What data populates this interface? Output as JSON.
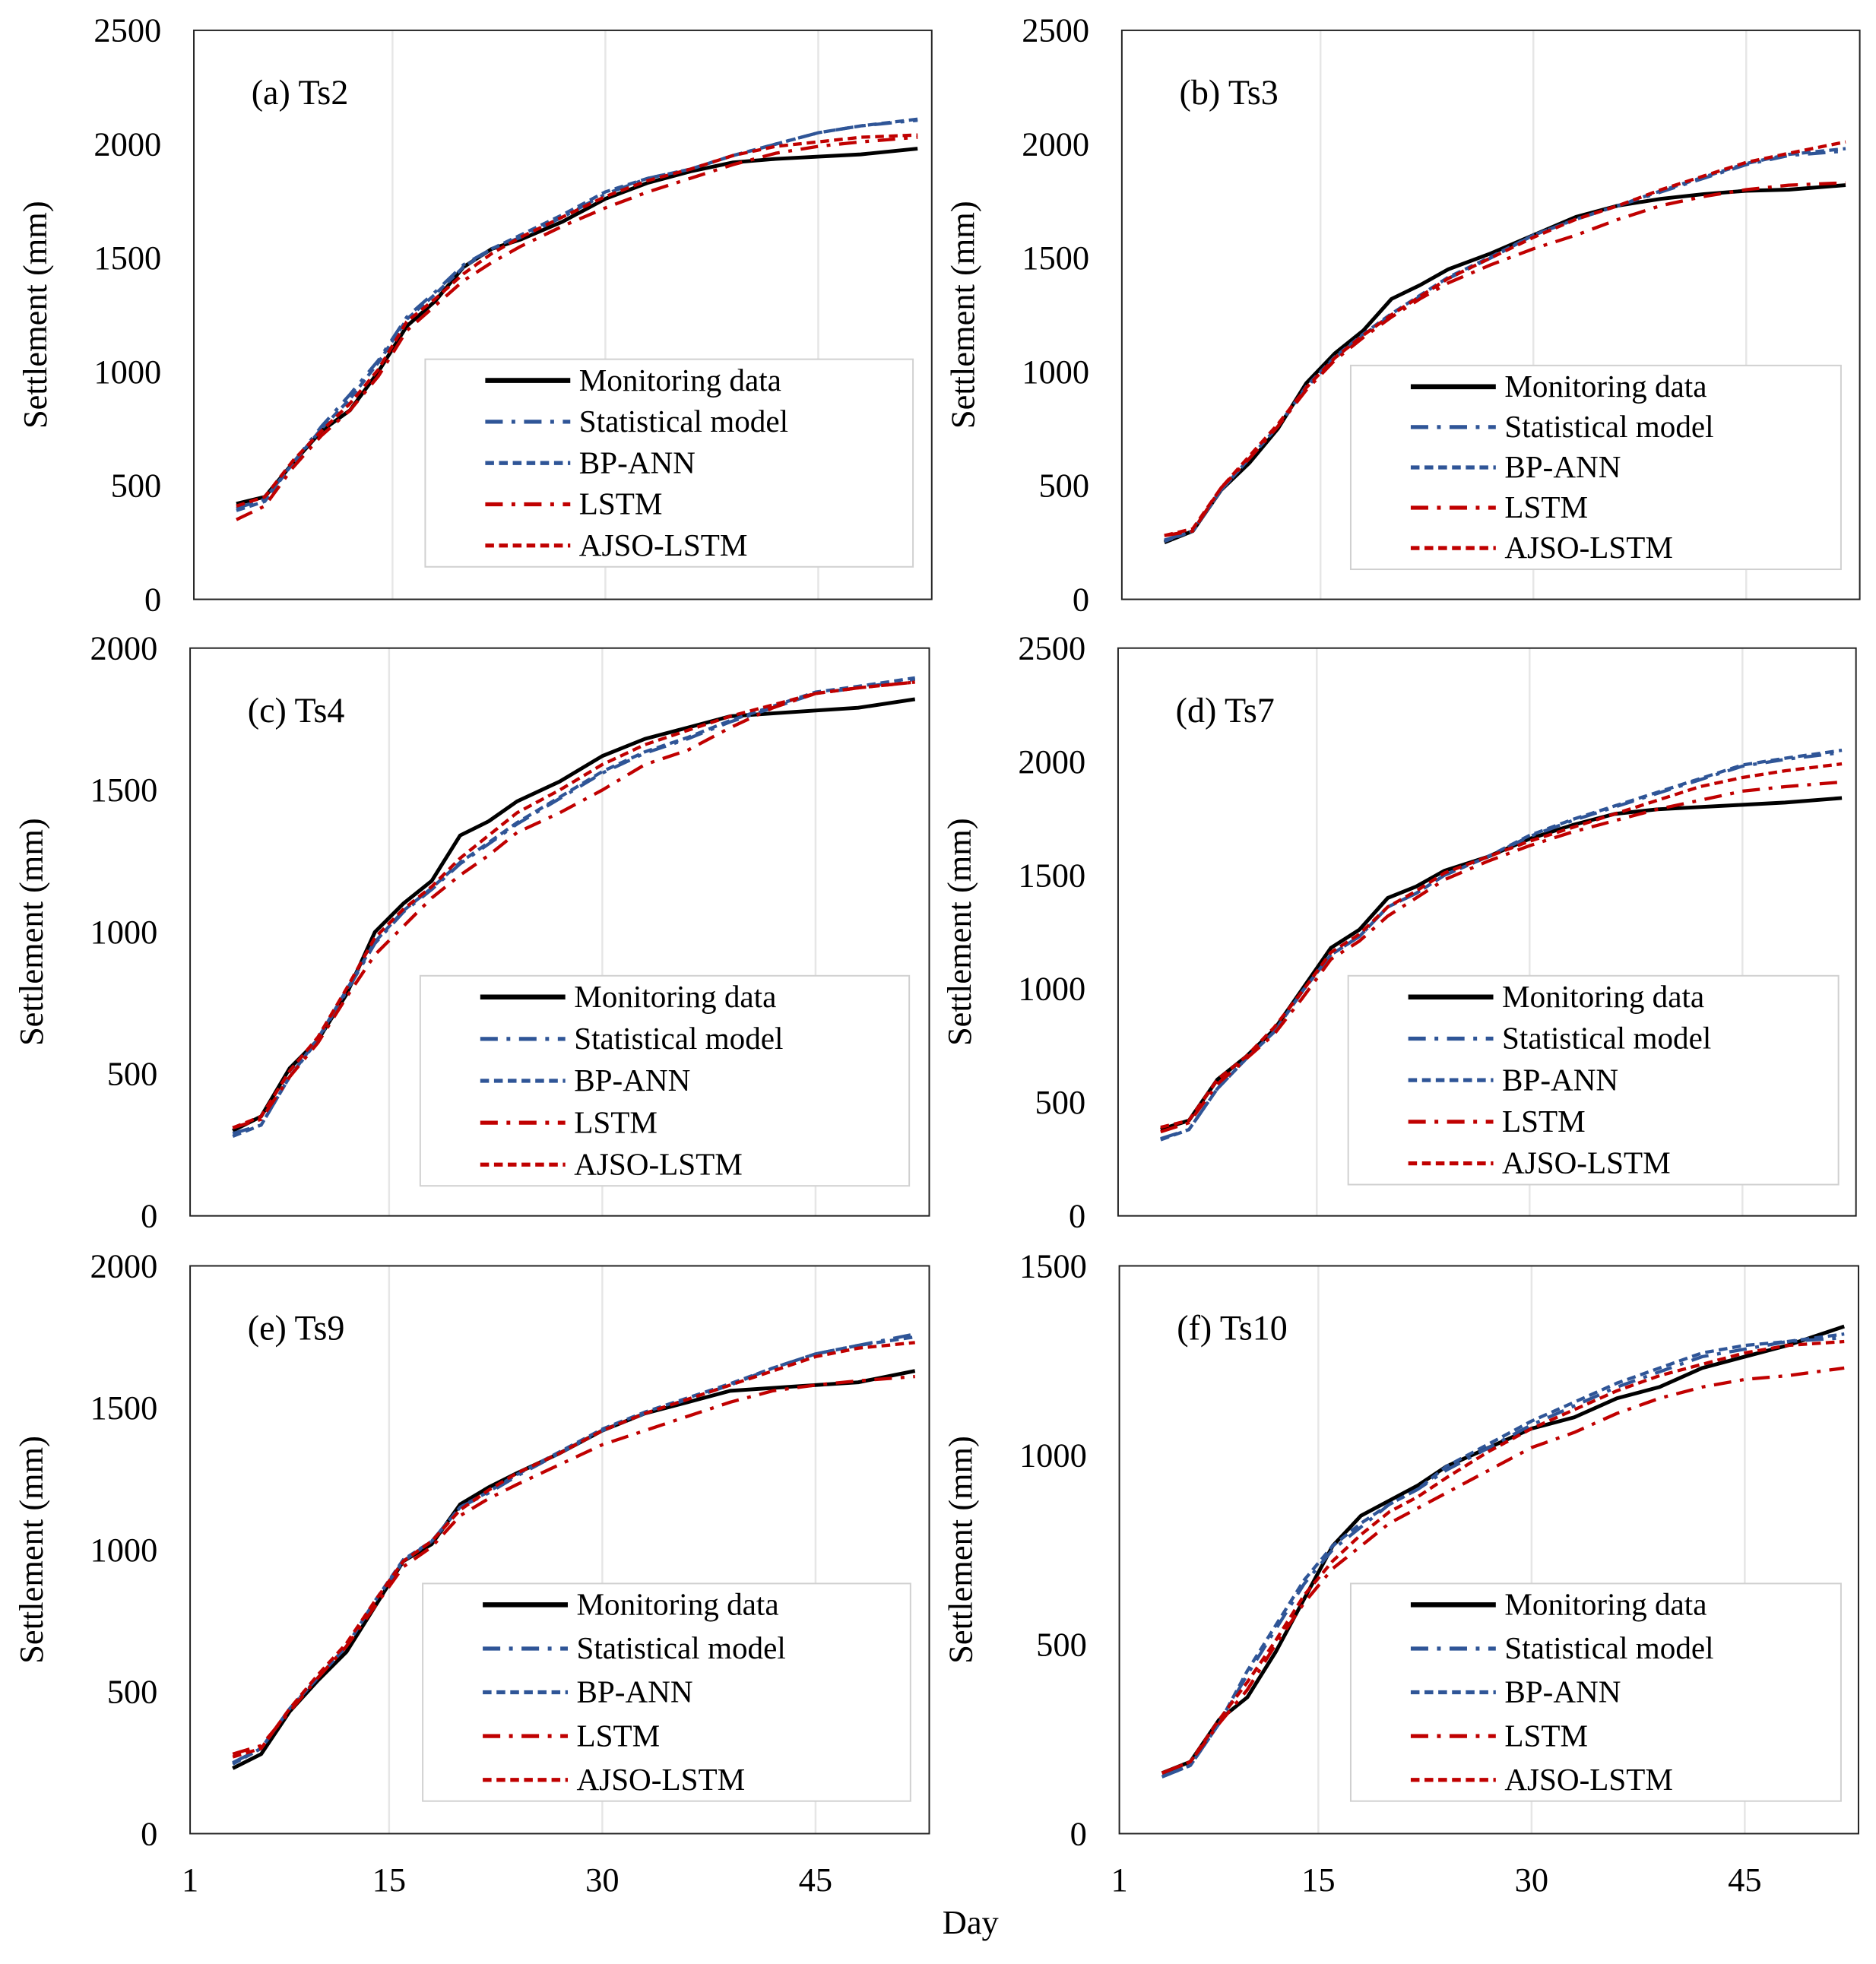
{
  "chart_data": [
    {
      "type": "line",
      "title": "(a) Ts2",
      "ylabel": "Settlement (mm)",
      "xlabel": "Day",
      "ylim": [
        0,
        2500
      ],
      "yticks": [
        "0",
        "500",
        "1000",
        "1500",
        "2000",
        "2500"
      ],
      "xlim": [
        1,
        53
      ],
      "xticks": [
        "1",
        "15",
        "30",
        "45"
      ],
      "show_xticks": false,
      "legend": "bottom-right",
      "grid": "vertical",
      "x": [
        4,
        6,
        8,
        10,
        12,
        14,
        16,
        18,
        20,
        22,
        24,
        27,
        30,
        33,
        36,
        39,
        42,
        45,
        48,
        52
      ],
      "series": [
        {
          "name": "Monitoring data",
          "values": [
            420,
            450,
            600,
            740,
            830,
            1000,
            1200,
            1310,
            1460,
            1540,
            1580,
            1660,
            1760,
            1830,
            1880,
            1920,
            1935,
            1945,
            1955,
            1980
          ]
        },
        {
          "name": "Statistical model",
          "values": [
            400,
            440,
            600,
            760,
            900,
            1050,
            1240,
            1350,
            1470,
            1540,
            1590,
            1680,
            1780,
            1850,
            1890,
            1950,
            2000,
            2050,
            2080,
            2105
          ]
        },
        {
          "name": "BP-ANN",
          "values": [
            390,
            430,
            600,
            750,
            880,
            1040,
            1230,
            1340,
            1460,
            1540,
            1600,
            1690,
            1790,
            1850,
            1890,
            1950,
            2000,
            2050,
            2080,
            2110
          ]
        },
        {
          "name": "LSTM",
          "values": [
            350,
            410,
            580,
            720,
            830,
            980,
            1180,
            1290,
            1400,
            1480,
            1550,
            1640,
            1720,
            1790,
            1850,
            1910,
            1960,
            1990,
            2010,
            2030
          ]
        },
        {
          "name": "AJSO-LSTM",
          "values": [
            410,
            450,
            610,
            740,
            860,
            1010,
            1220,
            1320,
            1430,
            1520,
            1590,
            1680,
            1770,
            1840,
            1890,
            1950,
            1990,
            2010,
            2030,
            2040
          ]
        }
      ]
    },
    {
      "type": "line",
      "title": "(b) Ts3",
      "ylabel": "Settlement (mm)",
      "xlabel": "Day",
      "ylim": [
        0,
        2500
      ],
      "yticks": [
        "0",
        "500",
        "1000",
        "1500",
        "2000",
        "2500"
      ],
      "xlim": [
        1,
        53
      ],
      "xticks": [
        "1",
        "15",
        "30",
        "45"
      ],
      "show_xticks": false,
      "legend": "bottom-right",
      "grid": "vertical",
      "x": [
        4,
        6,
        8,
        10,
        12,
        14,
        16,
        18,
        20,
        22,
        24,
        27,
        30,
        33,
        36,
        39,
        42,
        45,
        48,
        52
      ],
      "series": [
        {
          "name": "Monitoring data",
          "values": [
            250,
            300,
            480,
            600,
            750,
            950,
            1080,
            1180,
            1320,
            1380,
            1450,
            1520,
            1600,
            1680,
            1730,
            1760,
            1780,
            1795,
            1800,
            1820
          ]
        },
        {
          "name": "Statistical model",
          "values": [
            260,
            300,
            480,
            620,
            760,
            930,
            1060,
            1160,
            1250,
            1330,
            1410,
            1500,
            1600,
            1670,
            1730,
            1790,
            1850,
            1910,
            1950,
            1970
          ]
        },
        {
          "name": "BP-ANN",
          "values": [
            255,
            300,
            480,
            620,
            760,
            935,
            1065,
            1165,
            1255,
            1335,
            1415,
            1505,
            1600,
            1670,
            1730,
            1795,
            1855,
            1915,
            1955,
            1980
          ]
        },
        {
          "name": "LSTM",
          "values": [
            280,
            300,
            490,
            620,
            760,
            920,
            1050,
            1150,
            1240,
            1320,
            1390,
            1470,
            1540,
            1600,
            1670,
            1730,
            1770,
            1800,
            1820,
            1830
          ]
        },
        {
          "name": "AJSO-LSTM",
          "values": [
            280,
            310,
            490,
            630,
            770,
            930,
            1060,
            1160,
            1250,
            1330,
            1410,
            1500,
            1590,
            1670,
            1730,
            1800,
            1860,
            1920,
            1960,
            2010
          ]
        }
      ]
    },
    {
      "type": "line",
      "title": "(c) Ts4",
      "ylabel": "Settlement (mm)",
      "xlabel": "Day",
      "ylim": [
        0,
        2000
      ],
      "yticks": [
        "0",
        "500",
        "1000",
        "1500",
        "2000"
      ],
      "xlim": [
        1,
        53
      ],
      "xticks": [
        "1",
        "15",
        "30",
        "45"
      ],
      "show_xticks": false,
      "legend": "bottom-right",
      "grid": "vertical",
      "x": [
        4,
        6,
        8,
        10,
        12,
        14,
        16,
        18,
        20,
        22,
        24,
        27,
        30,
        33,
        36,
        39,
        42,
        45,
        48,
        52
      ],
      "series": [
        {
          "name": "Monitoring data",
          "values": [
            300,
            350,
            520,
            620,
            780,
            1000,
            1100,
            1180,
            1340,
            1390,
            1460,
            1530,
            1620,
            1680,
            1720,
            1760,
            1770,
            1780,
            1790,
            1820
          ]
        },
        {
          "name": "Statistical model",
          "values": [
            290,
            320,
            490,
            620,
            790,
            960,
            1070,
            1150,
            1240,
            1310,
            1380,
            1470,
            1560,
            1630,
            1680,
            1740,
            1790,
            1840,
            1860,
            1890
          ]
        },
        {
          "name": "BP-ANN",
          "values": [
            280,
            320,
            490,
            625,
            795,
            965,
            1075,
            1155,
            1245,
            1315,
            1385,
            1475,
            1565,
            1635,
            1685,
            1745,
            1795,
            1845,
            1865,
            1895
          ]
        },
        {
          "name": "LSTM",
          "values": [
            310,
            340,
            490,
            610,
            770,
            920,
            1020,
            1120,
            1200,
            1270,
            1350,
            1420,
            1500,
            1590,
            1640,
            1720,
            1790,
            1840,
            1860,
            1880
          ]
        },
        {
          "name": "AJSO-LSTM",
          "values": [
            310,
            350,
            510,
            630,
            800,
            980,
            1080,
            1160,
            1260,
            1340,
            1420,
            1500,
            1590,
            1660,
            1710,
            1760,
            1800,
            1840,
            1860,
            1880
          ]
        }
      ]
    },
    {
      "type": "line",
      "title": "(d) Ts7",
      "ylabel": "Settlement (mm)",
      "xlabel": "Day",
      "ylim": [
        0,
        2500
      ],
      "yticks": [
        "0",
        "500",
        "1000",
        "1500",
        "2000",
        "2500"
      ],
      "xlim": [
        1,
        53
      ],
      "xticks": [
        "1",
        "15",
        "30",
        "45"
      ],
      "show_xticks": false,
      "legend": "bottom-right",
      "grid": "vertical",
      "x": [
        4,
        6,
        8,
        10,
        12,
        14,
        16,
        18,
        20,
        22,
        24,
        27,
        30,
        33,
        36,
        39,
        42,
        45,
        48,
        52
      ],
      "series": [
        {
          "name": "Monitoring data",
          "values": [
            380,
            420,
            600,
            700,
            820,
            1000,
            1180,
            1260,
            1400,
            1450,
            1520,
            1580,
            1660,
            1720,
            1770,
            1790,
            1800,
            1810,
            1820,
            1840
          ]
        },
        {
          "name": "Statistical model",
          "values": [
            340,
            380,
            560,
            690,
            810,
            990,
            1150,
            1230,
            1360,
            1420,
            1500,
            1580,
            1670,
            1740,
            1800,
            1860,
            1920,
            1980,
            2010,
            2040
          ]
        },
        {
          "name": "BP-ANN",
          "values": [
            335,
            380,
            560,
            690,
            810,
            990,
            1150,
            1230,
            1360,
            1420,
            1500,
            1580,
            1675,
            1745,
            1805,
            1865,
            1925,
            1985,
            2015,
            2050
          ]
        },
        {
          "name": "LSTM",
          "values": [
            370,
            410,
            580,
            690,
            800,
            960,
            1130,
            1210,
            1320,
            1400,
            1480,
            1560,
            1630,
            1690,
            1740,
            1790,
            1830,
            1870,
            1890,
            1910
          ]
        },
        {
          "name": "AJSO-LSTM",
          "values": [
            390,
            420,
            600,
            700,
            830,
            990,
            1160,
            1240,
            1360,
            1430,
            1510,
            1580,
            1650,
            1710,
            1770,
            1830,
            1890,
            1930,
            1960,
            1990
          ]
        }
      ]
    },
    {
      "type": "line",
      "title": "(e) Ts9",
      "ylabel": "Settlement (mm)",
      "xlabel": "Day",
      "ylim": [
        0,
        2000
      ],
      "yticks": [
        "0",
        "500",
        "1000",
        "1500",
        "2000"
      ],
      "xlim": [
        1,
        53
      ],
      "xticks": [
        "1",
        "15",
        "30",
        "45"
      ],
      "show_xticks": true,
      "legend": "bottom-right",
      "grid": "vertical",
      "x": [
        4,
        6,
        8,
        10,
        12,
        14,
        16,
        18,
        20,
        22,
        24,
        27,
        30,
        33,
        36,
        39,
        42,
        45,
        48,
        52
      ],
      "series": [
        {
          "name": "Monitoring data",
          "values": [
            230,
            280,
            430,
            540,
            640,
            800,
            960,
            1020,
            1160,
            1220,
            1270,
            1340,
            1420,
            1480,
            1520,
            1560,
            1570,
            1580,
            1590,
            1630
          ]
        },
        {
          "name": "Statistical model",
          "values": [
            250,
            300,
            440,
            550,
            660,
            820,
            960,
            1030,
            1150,
            1200,
            1260,
            1340,
            1420,
            1480,
            1530,
            1580,
            1640,
            1690,
            1720,
            1760
          ]
        },
        {
          "name": "BP-ANN",
          "values": [
            245,
            300,
            440,
            550,
            660,
            820,
            965,
            1030,
            1150,
            1205,
            1265,
            1345,
            1425,
            1485,
            1535,
            1585,
            1640,
            1690,
            1720,
            1750
          ]
        },
        {
          "name": "LSTM",
          "values": [
            280,
            310,
            430,
            550,
            660,
            800,
            940,
            1010,
            1120,
            1180,
            1230,
            1300,
            1370,
            1420,
            1470,
            1520,
            1560,
            1580,
            1595,
            1610
          ]
        },
        {
          "name": "AJSO-LSTM",
          "values": [
            270,
            300,
            440,
            560,
            670,
            820,
            960,
            1030,
            1140,
            1210,
            1270,
            1340,
            1420,
            1480,
            1530,
            1580,
            1630,
            1680,
            1710,
            1730
          ]
        }
      ]
    },
    {
      "type": "line",
      "title": "(f) Ts10",
      "ylabel": "Settlement (mm)",
      "xlabel": "Day",
      "ylim": [
        0,
        1500
      ],
      "yticks": [
        "0",
        "500",
        "1000",
        "1500"
      ],
      "xlim": [
        1,
        53
      ],
      "xticks": [
        "1",
        "15",
        "30",
        "45"
      ],
      "show_xticks": true,
      "legend": "bottom-right",
      "grid": "vertical",
      "x": [
        4,
        6,
        8,
        10,
        12,
        14,
        16,
        18,
        20,
        22,
        24,
        27,
        30,
        33,
        36,
        39,
        42,
        45,
        48,
        52
      ],
      "series": [
        {
          "name": "Monitoring data",
          "values": [
            160,
            190,
            300,
            360,
            480,
            620,
            760,
            840,
            880,
            920,
            970,
            1020,
            1070,
            1100,
            1150,
            1180,
            1230,
            1260,
            1290,
            1340
          ]
        },
        {
          "name": "Statistical model",
          "values": [
            150,
            180,
            290,
            420,
            540,
            660,
            750,
            810,
            870,
            910,
            960,
            1020,
            1080,
            1130,
            1180,
            1220,
            1260,
            1280,
            1300,
            1310
          ]
        },
        {
          "name": "BP-ANN",
          "values": [
            150,
            180,
            290,
            430,
            550,
            670,
            760,
            820,
            870,
            910,
            970,
            1030,
            1090,
            1140,
            1190,
            1230,
            1270,
            1290,
            1300,
            1320
          ]
        },
        {
          "name": "LSTM",
          "values": [
            160,
            190,
            290,
            380,
            500,
            610,
            700,
            760,
            820,
            860,
            900,
            960,
            1020,
            1060,
            1110,
            1150,
            1180,
            1200,
            1210,
            1230
          ]
        },
        {
          "name": "AJSO-LSTM",
          "values": [
            160,
            190,
            300,
            400,
            510,
            630,
            720,
            790,
            850,
            890,
            940,
            1010,
            1070,
            1120,
            1170,
            1210,
            1240,
            1270,
            1290,
            1300
          ]
        }
      ]
    }
  ],
  "shared_xlabel": "Day",
  "series_styles": [
    {
      "name": "Monitoring data",
      "color": "#000000",
      "style": "solid"
    },
    {
      "name": "Statistical model",
      "color": "#2F5597",
      "style": "dash-dot"
    },
    {
      "name": "BP-ANN",
      "color": "#2F5597",
      "style": "dash"
    },
    {
      "name": "LSTM",
      "color": "#C00000",
      "style": "dash-dot"
    },
    {
      "name": "AJSO-LSTM",
      "color": "#C00000",
      "style": "dash"
    }
  ]
}
